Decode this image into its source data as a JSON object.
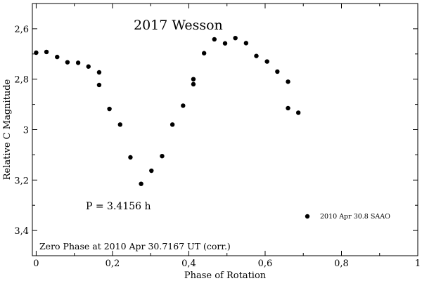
{
  "chart_data": {
    "type": "scatter",
    "title": "2017 Wesson",
    "xlabel": "Phase of Rotation",
    "ylabel": "Relative C Magnitude",
    "xlim": [
      -0.01,
      1.0
    ],
    "ylim": [
      3.5,
      2.5
    ],
    "y_inverted": true,
    "grid": false,
    "legend_position": "bottom-right",
    "x_ticks": [
      {
        "value": 0,
        "label": "0"
      },
      {
        "value": 0.2,
        "label": "0,2"
      },
      {
        "value": 0.4,
        "label": "0,4"
      },
      {
        "value": 0.6,
        "label": "0,6"
      },
      {
        "value": 0.8,
        "label": "0,8"
      },
      {
        "value": 1.0,
        "label": "1"
      }
    ],
    "y_ticks": [
      {
        "value": 2.6,
        "label": "2,6"
      },
      {
        "value": 2.8,
        "label": "2,8"
      },
      {
        "value": 3.0,
        "label": "3"
      },
      {
        "value": 3.2,
        "label": "3,2"
      },
      {
        "value": 3.4,
        "label": "3,4"
      }
    ],
    "annotations": {
      "period": "P = 3.4156 h",
      "zero_phase": "Zero Phase at 2010 Apr 30.7167 UT (corr.)"
    },
    "series": [
      {
        "name": "2010 Apr 30.8 SAAO",
        "color": "#000000",
        "marker": "filled-circle",
        "points": [
          {
            "x": 0.0,
            "y": 2.695
          },
          {
            "x": 0.027,
            "y": 2.692
          },
          {
            "x": 0.055,
            "y": 2.712
          },
          {
            "x": 0.082,
            "y": 2.733
          },
          {
            "x": 0.11,
            "y": 2.735
          },
          {
            "x": 0.137,
            "y": 2.75
          },
          {
            "x": 0.165,
            "y": 2.773
          },
          {
            "x": 0.165,
            "y": 2.823
          },
          {
            "x": 0.192,
            "y": 2.918
          },
          {
            "x": 0.22,
            "y": 2.98
          },
          {
            "x": 0.247,
            "y": 3.11
          },
          {
            "x": 0.275,
            "y": 3.215
          },
          {
            "x": 0.302,
            "y": 3.163
          },
          {
            "x": 0.33,
            "y": 3.105
          },
          {
            "x": 0.357,
            "y": 2.98
          },
          {
            "x": 0.385,
            "y": 2.905
          },
          {
            "x": 0.412,
            "y": 2.8
          },
          {
            "x": 0.412,
            "y": 2.82
          },
          {
            "x": 0.44,
            "y": 2.697
          },
          {
            "x": 0.467,
            "y": 2.642
          },
          {
            "x": 0.495,
            "y": 2.658
          },
          {
            "x": 0.522,
            "y": 2.637
          },
          {
            "x": 0.55,
            "y": 2.657
          },
          {
            "x": 0.577,
            "y": 2.708
          },
          {
            "x": 0.605,
            "y": 2.73
          },
          {
            "x": 0.632,
            "y": 2.77
          },
          {
            "x": 0.66,
            "y": 2.81
          },
          {
            "x": 0.66,
            "y": 2.915
          },
          {
            "x": 0.687,
            "y": 2.933
          }
        ]
      }
    ]
  }
}
